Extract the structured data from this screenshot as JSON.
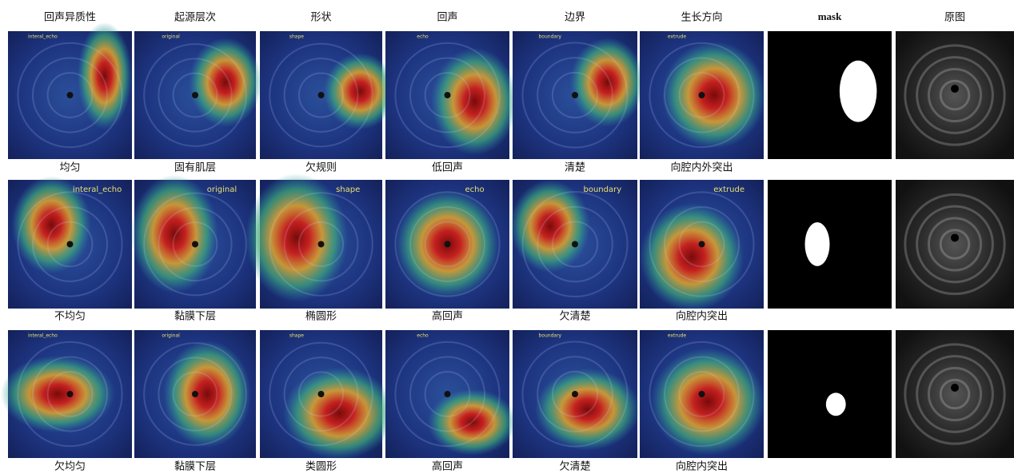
{
  "columns": [
    "回声异质性",
    "起源层次",
    "形状",
    "回声",
    "边界",
    "生长方向",
    "mask",
    "原图"
  ],
  "rows": [
    {
      "overlay_labels": [
        "interal_echo",
        "original",
        "shape",
        "echo",
        "boundary",
        "extrude"
      ],
      "captions": [
        "均匀",
        "固有肌层",
        "欠规则",
        "低回声",
        "清楚",
        "向腔内外突出"
      ]
    },
    {
      "overlay_labels": [
        "interal_echo",
        "original",
        "shape",
        "echo",
        "boundary",
        "extrude"
      ],
      "captions": [
        "不均匀",
        "黏膜下层",
        "椭圆形",
        "高回声",
        "欠清楚",
        "向腔内突出"
      ]
    },
    {
      "overlay_labels": [
        "interal_echo",
        "original",
        "shape",
        "echo",
        "boundary",
        "extrude"
      ],
      "captions": [
        "欠均匀",
        "黏膜下层",
        "类圆形",
        "高回声",
        "欠清楚",
        "向腔内突出"
      ]
    }
  ]
}
